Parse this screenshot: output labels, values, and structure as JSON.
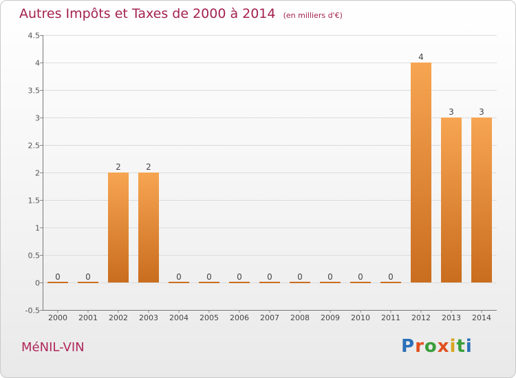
{
  "header": {
    "title": "Autres Impôts et Taxes de 2000 à 2014",
    "subtitle": "(en milliers d'€)"
  },
  "footer": {
    "commune": "MéNIL-VIN",
    "brand": "Proxiti",
    "brand_colors": [
      "#2a6fb8",
      "#e0501f",
      "#3a9e3a",
      "#e0501f",
      "#d9a520",
      "#3a9e3a",
      "#2a6fb8"
    ]
  },
  "colors": {
    "bar_light": "#f7a552",
    "bar_dark": "#c96d1e",
    "title": "#a3204f",
    "grid": "#dcdcdc"
  },
  "chart_data": {
    "type": "bar",
    "categories": [
      "2000",
      "2001",
      "2002",
      "2003",
      "2004",
      "2005",
      "2006",
      "2007",
      "2008",
      "2009",
      "2010",
      "2011",
      "2012",
      "2013",
      "2014"
    ],
    "values": [
      0,
      0,
      2,
      2,
      0,
      0,
      0,
      0,
      0,
      0,
      0,
      0,
      4,
      3,
      3
    ],
    "ylim": [
      -0.5,
      4.5
    ],
    "yticks": [
      -0.5,
      0,
      0.5,
      1,
      1.5,
      2,
      2.5,
      3,
      3.5,
      4,
      4.5
    ],
    "ytick_labels": [
      "-0.5",
      "0",
      "0.5",
      "1",
      "1.5",
      "2",
      "2.5",
      "3",
      "3.5",
      "4",
      "4.5"
    ],
    "grid": true
  }
}
